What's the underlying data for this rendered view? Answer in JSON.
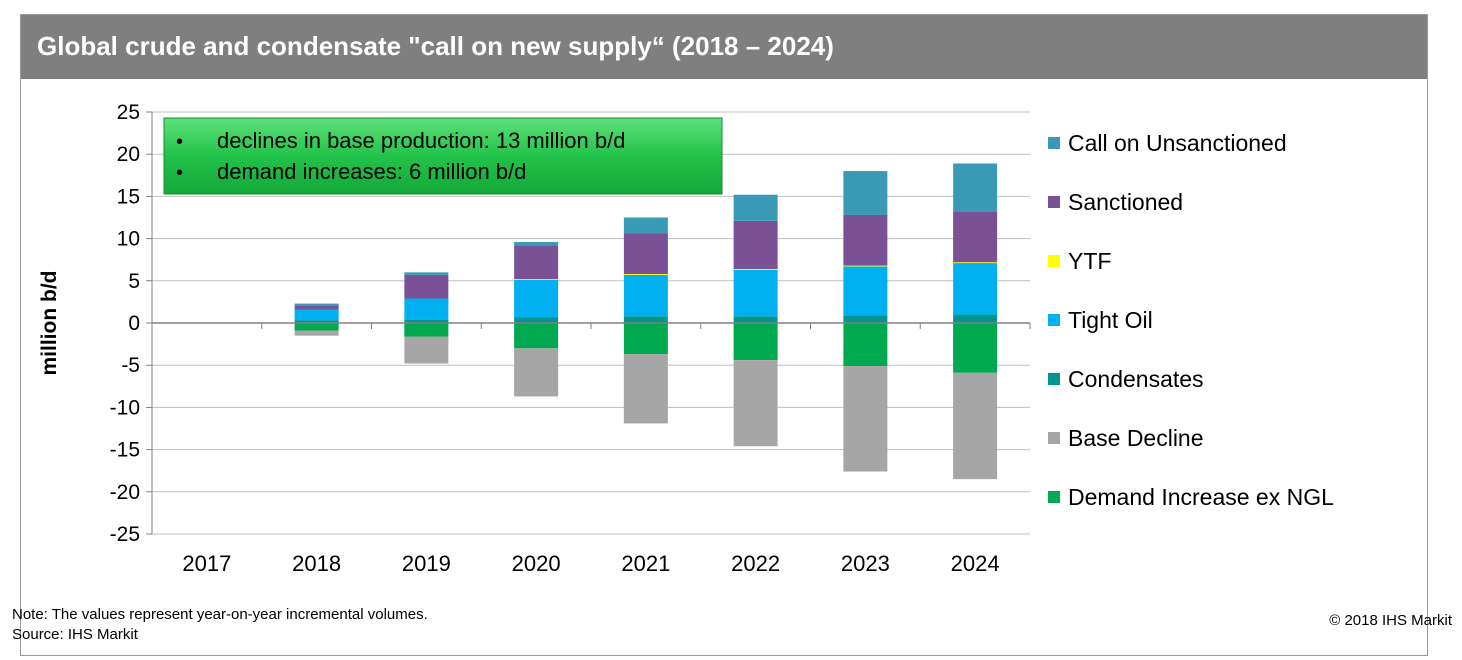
{
  "chart_data": {
    "type": "bar",
    "stacked": true,
    "title": "Global crude and condensate \"call on new supply“ (2018 – 2024)",
    "ylabel": "million b/d",
    "xlabel": "",
    "ylim": [
      -25,
      25
    ],
    "yticks": [
      25,
      20,
      15,
      10,
      5,
      0,
      -5,
      -10,
      -15,
      -20,
      -25
    ],
    "categories": [
      "2017",
      "2018",
      "2019",
      "2020",
      "2021",
      "2022",
      "2023",
      "2024"
    ],
    "grid": true,
    "legend_position": "right",
    "series": [
      {
        "name": "Call on Unsanctioned",
        "color": "#3a9ab5",
        "values": [
          0,
          0.2,
          0.3,
          0.4,
          1.9,
          3.1,
          5.2,
          5.7
        ]
      },
      {
        "name": "Sanctioned",
        "color": "#7b5196",
        "values": [
          0,
          0.5,
          2.8,
          4.0,
          4.8,
          5.7,
          6.0,
          6.0
        ]
      },
      {
        "name": "YTF",
        "color": "#ffff00",
        "values": [
          0,
          0,
          0,
          0.1,
          0.1,
          0.1,
          0.1,
          0.1
        ]
      },
      {
        "name": "Tight Oil",
        "color": "#00b0f0",
        "values": [
          0,
          1.3,
          2.5,
          4.4,
          4.9,
          5.5,
          5.8,
          6.1
        ]
      },
      {
        "name": "Condensates",
        "color": "#00958f",
        "values": [
          0,
          0.3,
          0.4,
          0.7,
          0.8,
          0.8,
          0.9,
          1.0
        ]
      },
      {
        "name": "Base Decline",
        "color": "#a6a6a6",
        "values": [
          0,
          -0.6,
          -3.2,
          -5.7,
          -8.2,
          -10.2,
          -12.5,
          -12.6
        ]
      },
      {
        "name": "Demand Increase ex NGL",
        "color": "#00a84f",
        "values": [
          0,
          -0.9,
          -1.6,
          -3.0,
          -3.7,
          -4.4,
          -5.1,
          -5.9
        ]
      }
    ],
    "annotation": {
      "bullets": [
        "declines in base production: 13 million b/d",
        "demand increases: 6 million b/d"
      ],
      "bullet_glyph": "•",
      "fill": "#22c34a"
    }
  },
  "note_line1": "Note: The values represent year-on-year incremental volumes.",
  "note_line2": "Source: IHS Markit",
  "copyright": "© 2018 IHS Markit"
}
